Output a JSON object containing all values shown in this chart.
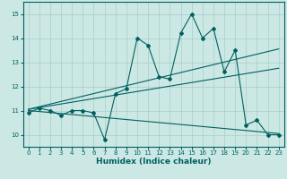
{
  "xlabel": "Humidex (Indice chaleur)",
  "ylabel": "",
  "background_color": "#cce8e4",
  "grid_color": "#aaccc8",
  "line_color": "#006060",
  "xlim": [
    -0.5,
    23.5
  ],
  "ylim": [
    9.5,
    15.5
  ],
  "yticks": [
    10,
    11,
    12,
    13,
    14,
    15
  ],
  "xticks": [
    0,
    1,
    2,
    3,
    4,
    5,
    6,
    7,
    8,
    9,
    10,
    11,
    12,
    13,
    14,
    15,
    16,
    17,
    18,
    19,
    20,
    21,
    22,
    23
  ],
  "main_line_x": [
    0,
    1,
    2,
    3,
    4,
    5,
    6,
    7,
    8,
    9,
    10,
    11,
    12,
    13,
    14,
    15,
    16,
    17,
    18,
    19,
    20,
    21,
    22,
    23
  ],
  "main_line_y": [
    10.9,
    11.1,
    11.0,
    10.8,
    11.0,
    11.0,
    10.9,
    9.8,
    11.7,
    11.9,
    14.0,
    13.7,
    12.4,
    12.3,
    14.2,
    15.0,
    14.0,
    14.4,
    12.6,
    13.5,
    10.4,
    10.6,
    10.0,
    10.0
  ],
  "trend_line1_x": [
    0,
    23
  ],
  "trend_line1_y": [
    11.05,
    13.55
  ],
  "trend_line2_x": [
    0,
    23
  ],
  "trend_line2_y": [
    11.05,
    12.75
  ],
  "trend_line3_x": [
    0,
    23
  ],
  "trend_line3_y": [
    11.0,
    10.05
  ]
}
